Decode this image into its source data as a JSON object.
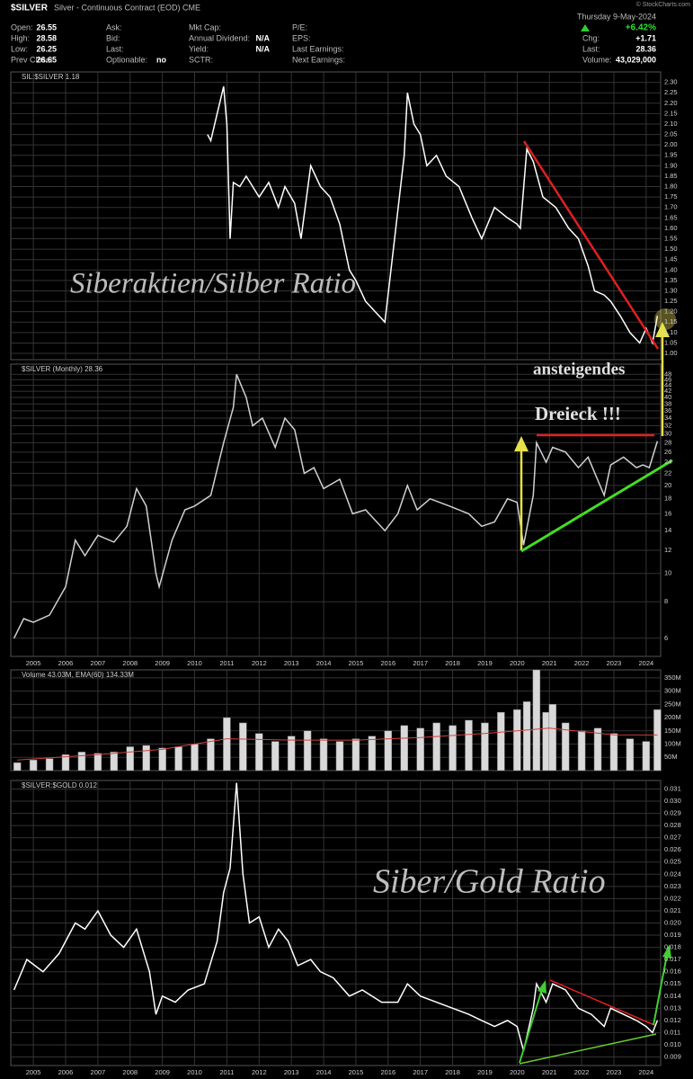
{
  "header": {
    "symbol": "$SILVER",
    "description": "Silver - Continuous Contract (EOD) CME",
    "date": "Thursday 9-May-2024",
    "change_pct": "+6.42%",
    "copyright": "© StockCharts.com",
    "fields": [
      [
        "Open:",
        "26.55"
      ],
      [
        "High:",
        "28.58"
      ],
      [
        "Low:",
        "26.25"
      ],
      [
        "Prev Close:",
        "26.65"
      ],
      [
        "Ask:"
      ],
      [
        "Bid:"
      ],
      [
        "Last:"
      ],
      [
        "Optionable:",
        "no"
      ],
      [
        "Mkt Cap:"
      ],
      [
        "Annual Dividend:",
        "N/A"
      ],
      [
        "Yield:",
        "N/A"
      ],
      [
        "SCTR:"
      ],
      [
        "P/E:"
      ],
      [
        "EPS:"
      ],
      [
        "Last Earnings:"
      ],
      [
        "Next Earnings:"
      ]
    ],
    "right_fields": [
      [
        "Chg:",
        "+1.71"
      ],
      [
        "Last:",
        "28.36"
      ],
      [
        "Volume:",
        "43,029,000"
      ]
    ]
  },
  "chart_data": [
    {
      "type": "line",
      "title": "SIL:$SILVER 1.18",
      "color": "#ffffff",
      "annotations": [
        "Siberaktien/Silber Ratio"
      ],
      "xlim": [
        2004.3,
        2024.45
      ],
      "ylim": [
        0.97,
        2.35
      ],
      "yticks": [
        {
          "value": 1,
          "label": "1.00"
        },
        1.05,
        {
          "value": 1.1,
          "label": "1.10"
        },
        1.15,
        {
          "value": 1.2,
          "label": "1.20"
        },
        1.25,
        {
          "value": 1.3,
          "label": "1.30"
        },
        1.35,
        {
          "value": 1.4,
          "label": "1.40"
        },
        1.45,
        {
          "value": 1.5,
          "label": "1.50"
        },
        1.55,
        {
          "value": 1.6,
          "label": "1.60"
        },
        1.65,
        {
          "value": 1.7,
          "label": "1.70"
        },
        1.75,
        {
          "value": 1.8,
          "label": "1.80"
        },
        1.85,
        {
          "value": 1.9,
          "label": "1.90"
        },
        1.95,
        {
          "value": 2,
          "label": "2.00"
        },
        2.05,
        {
          "value": 2.1,
          "label": "2.10"
        },
        2.15,
        {
          "value": 2.2,
          "label": "2.20"
        },
        2.25,
        {
          "value": 2.3,
          "label": "2.30"
        }
      ],
      "x": [
        2010.4,
        2010.5,
        2010.7,
        2010.9,
        2011.0,
        2011.1,
        2011.2,
        2011.4,
        2011.6,
        2011.8,
        2012.0,
        2012.3,
        2012.6,
        2012.8,
        2013.1,
        2013.3,
        2013.6,
        2013.9,
        2014.2,
        2014.5,
        2014.8,
        2015.0,
        2015.3,
        2015.6,
        2015.9,
        2016.2,
        2016.5,
        2016.6,
        2016.8,
        2017.0,
        2017.2,
        2017.5,
        2017.8,
        2018.2,
        2018.6,
        2018.9,
        2019.3,
        2019.7,
        2020.0,
        2020.1,
        2020.3,
        2020.5,
        2020.8,
        2021.2,
        2021.6,
        2021.9,
        2022.2,
        2022.4,
        2022.7,
        2022.9,
        2023.2,
        2023.5,
        2023.8,
        2024.0,
        2024.2,
        2024.35
      ],
      "values": [
        2.05,
        2.02,
        2.15,
        2.28,
        2.1,
        1.55,
        1.82,
        1.8,
        1.85,
        1.8,
        1.75,
        1.82,
        1.7,
        1.8,
        1.72,
        1.55,
        1.9,
        1.8,
        1.75,
        1.62,
        1.4,
        1.35,
        1.25,
        1.2,
        1.15,
        1.55,
        1.95,
        2.25,
        2.1,
        2.05,
        1.9,
        1.95,
        1.85,
        1.8,
        1.65,
        1.55,
        1.7,
        1.65,
        1.62,
        1.6,
        1.98,
        1.92,
        1.75,
        1.7,
        1.6,
        1.55,
        1.42,
        1.3,
        1.28,
        1.25,
        1.18,
        1.1,
        1.05,
        1.12,
        1.05,
        1.18
      ]
    },
    {
      "type": "line",
      "title": "$SILVER (Monthly) 28.36",
      "color": "#d0d0d0",
      "log": true,
      "annotations": [
        "ansteigendes",
        "Dreieck !!!"
      ],
      "xlim": [
        2004.3,
        2024.45
      ],
      "ylim": [
        5.2,
        52
      ],
      "xticks": [
        2005,
        2006,
        2007,
        2008,
        2009,
        2010,
        2011,
        2012,
        2013,
        2014,
        2015,
        2016,
        2017,
        2018,
        2019,
        2020,
        2021,
        2022,
        2023,
        2024
      ],
      "yticks": [
        6,
        8,
        10,
        12,
        14,
        16,
        18,
        20,
        22,
        24,
        26,
        28,
        30,
        32,
        34,
        36,
        38,
        40,
        42,
        44,
        46,
        48
      ],
      "x": [
        2004.4,
        2004.7,
        2005.0,
        2005.5,
        2006.0,
        2006.3,
        2006.6,
        2007.0,
        2007.5,
        2007.9,
        2008.2,
        2008.5,
        2008.8,
        2008.9,
        2009.3,
        2009.7,
        2010.0,
        2010.5,
        2010.9,
        2011.2,
        2011.3,
        2011.6,
        2011.8,
        2012.1,
        2012.5,
        2012.8,
        2013.1,
        2013.4,
        2013.7,
        2014.0,
        2014.5,
        2014.9,
        2015.3,
        2015.9,
        2016.3,
        2016.6,
        2016.9,
        2017.3,
        2017.9,
        2018.5,
        2018.9,
        2019.3,
        2019.7,
        2020.0,
        2020.2,
        2020.5,
        2020.6,
        2020.9,
        2021.1,
        2021.5,
        2021.9,
        2022.2,
        2022.7,
        2022.9,
        2023.3,
        2023.7,
        2023.9,
        2024.1,
        2024.35
      ],
      "values": [
        6.0,
        7.0,
        6.8,
        7.2,
        9.0,
        13.0,
        11.5,
        13.5,
        12.8,
        14.5,
        19.5,
        17.0,
        10.0,
        9.0,
        13.0,
        16.5,
        17.0,
        18.5,
        28.0,
        37.0,
        48.0,
        40.0,
        32.0,
        34.0,
        27.0,
        34.0,
        31.0,
        22.0,
        23.0,
        19.5,
        21.0,
        16.0,
        16.5,
        14.0,
        16.0,
        20.0,
        16.5,
        18.0,
        17.0,
        16.0,
        14.5,
        15.0,
        18.0,
        17.5,
        12.5,
        18.5,
        28.0,
        24.0,
        27.0,
        26.0,
        23.0,
        25.0,
        18.5,
        23.5,
        25.0,
        23.0,
        23.5,
        23.0,
        28.36
      ]
    },
    {
      "type": "bar",
      "title": "Volume 43.03M, EMA(60) 134.33M",
      "color": "#d9d9d9",
      "xlim": [
        2004.3,
        2024.45
      ],
      "ylim": [
        0,
        380
      ],
      "yticks": [
        {
          "value": 50,
          "label": "50M"
        },
        {
          "value": 100,
          "label": "100M"
        },
        {
          "value": 150,
          "label": "150M"
        },
        {
          "value": 200,
          "label": "200M"
        },
        {
          "value": 250,
          "label": "250M"
        },
        {
          "value": 300,
          "label": "300M"
        },
        {
          "value": 350,
          "label": "350M"
        }
      ],
      "x": [
        2004.5,
        2005.0,
        2005.5,
        2006.0,
        2006.5,
        2007.0,
        2007.5,
        2008.0,
        2008.5,
        2009.0,
        2009.5,
        2010.0,
        2010.5,
        2011.0,
        2011.5,
        2012.0,
        2012.5,
        2013.0,
        2013.5,
        2014.0,
        2014.5,
        2015.0,
        2015.5,
        2016.0,
        2016.5,
        2017.0,
        2017.5,
        2018.0,
        2018.5,
        2019.0,
        2019.5,
        2020.0,
        2020.3,
        2020.6,
        2020.9,
        2021.1,
        2021.5,
        2022.0,
        2022.5,
        2023.0,
        2023.5,
        2024.0,
        2024.35
      ],
      "values": [
        30,
        40,
        45,
        60,
        70,
        65,
        70,
        90,
        95,
        85,
        90,
        100,
        120,
        200,
        180,
        140,
        110,
        130,
        150,
        120,
        110,
        120,
        130,
        150,
        170,
        160,
        180,
        170,
        190,
        180,
        220,
        230,
        260,
        380,
        220,
        250,
        180,
        150,
        160,
        140,
        120,
        110,
        230
      ],
      "ema": {
        "color": "#d04040",
        "x": [
          2004.5,
          2007.0,
          2009.0,
          2011.0,
          2013.0,
          2015.0,
          2017.0,
          2019.0,
          2021.0,
          2023.0,
          2024.35
        ],
        "values": [
          40,
          60,
          80,
          120,
          115,
          115,
          125,
          140,
          160,
          135,
          134.33
        ]
      }
    },
    {
      "type": "line",
      "title": "$SILVER:$GOLD 0.012",
      "color": "#ffffff",
      "annotations": [
        "Siber/Gold Ratio"
      ],
      "xlim": [
        2004.3,
        2024.45
      ],
      "ylim": [
        0.0083,
        0.0317
      ],
      "xticks": [
        2005,
        2006,
        2007,
        2008,
        2009,
        2010,
        2011,
        2012,
        2013,
        2014,
        2015,
        2016,
        2017,
        2018,
        2019,
        2020,
        2021,
        2022,
        2023,
        2024
      ],
      "yticks": [
        0.009,
        {
          "value": 0.01,
          "label": "0.010"
        },
        0.011,
        0.012,
        0.013,
        0.014,
        0.015,
        0.016,
        0.017,
        0.018,
        0.019,
        {
          "value": 0.02,
          "label": "0.020"
        },
        0.021,
        0.022,
        0.023,
        0.024,
        0.025,
        0.026,
        0.027,
        0.028,
        0.029,
        {
          "value": 0.03,
          "label": "0.030"
        },
        0.031
      ],
      "x": [
        2004.4,
        2004.8,
        2005.3,
        2005.8,
        2006.3,
        2006.6,
        2007.0,
        2007.4,
        2007.8,
        2008.2,
        2008.6,
        2008.8,
        2009.0,
        2009.4,
        2009.8,
        2010.3,
        2010.7,
        2010.9,
        2011.1,
        2011.3,
        2011.5,
        2011.7,
        2012.0,
        2012.3,
        2012.6,
        2012.9,
        2013.2,
        2013.6,
        2013.9,
        2014.3,
        2014.8,
        2015.2,
        2015.8,
        2016.3,
        2016.6,
        2017.0,
        2017.5,
        2018.0,
        2018.5,
        2018.9,
        2019.3,
        2019.7,
        2020.0,
        2020.2,
        2020.5,
        2020.6,
        2020.9,
        2021.1,
        2021.5,
        2021.9,
        2022.3,
        2022.7,
        2022.9,
        2023.3,
        2023.7,
        2024.0,
        2024.2,
        2024.35
      ],
      "values": [
        0.0145,
        0.017,
        0.016,
        0.0175,
        0.02,
        0.0195,
        0.021,
        0.019,
        0.018,
        0.0195,
        0.016,
        0.0125,
        0.014,
        0.0135,
        0.0145,
        0.015,
        0.0185,
        0.0225,
        0.0245,
        0.0315,
        0.024,
        0.02,
        0.0205,
        0.018,
        0.0195,
        0.0185,
        0.0165,
        0.017,
        0.016,
        0.0155,
        0.014,
        0.0145,
        0.0135,
        0.0135,
        0.015,
        0.014,
        0.0135,
        0.013,
        0.0125,
        0.012,
        0.0115,
        0.012,
        0.0115,
        0.0095,
        0.013,
        0.015,
        0.0135,
        0.015,
        0.0145,
        0.013,
        0.0125,
        0.0115,
        0.013,
        0.0125,
        0.012,
        0.0115,
        0.011,
        0.012
      ]
    }
  ]
}
